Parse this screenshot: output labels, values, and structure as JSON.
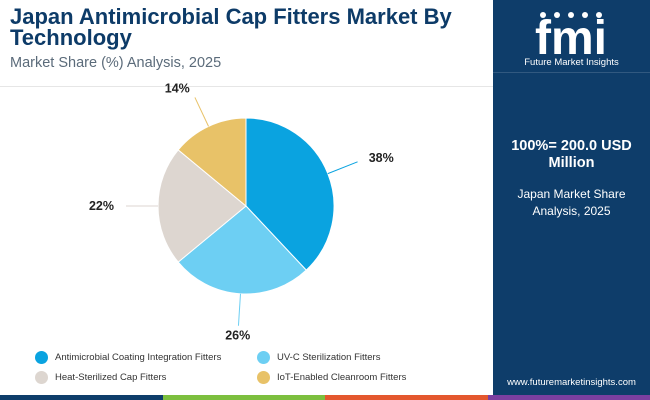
{
  "header": {
    "title": "Japan Antimicrobial Cap Fitters Market By Technology",
    "subtitle": "Market Share (%) Analysis, 2025"
  },
  "chart_data": {
    "type": "pie",
    "labels": [
      "Antimicrobial Coating Integration Fitters",
      "UV-C Sterilization Fitters",
      "Heat-Sterilized Cap Fitters",
      "IoT-Enabled Cleanroom Fitters"
    ],
    "values": [
      38,
      26,
      22,
      14
    ],
    "value_labels": [
      "38%",
      "26%",
      "22%",
      "14%"
    ],
    "colors": [
      "#0aa3e0",
      "#6dcff3",
      "#ddd6d0",
      "#e8c268"
    ],
    "legend_position": "bottom"
  },
  "sidebar": {
    "logo_letters": "fmi",
    "logo_text": "Future Market Insights",
    "total": "100%= 200.0 USD Million",
    "region": "Japan Market Share Analysis, 2025",
    "url": "www.futuremarketinsights.com"
  },
  "bottom_bar_colors": [
    "#0e3d6a",
    "#7cbf3e",
    "#e4572e",
    "#7b3fa0"
  ]
}
